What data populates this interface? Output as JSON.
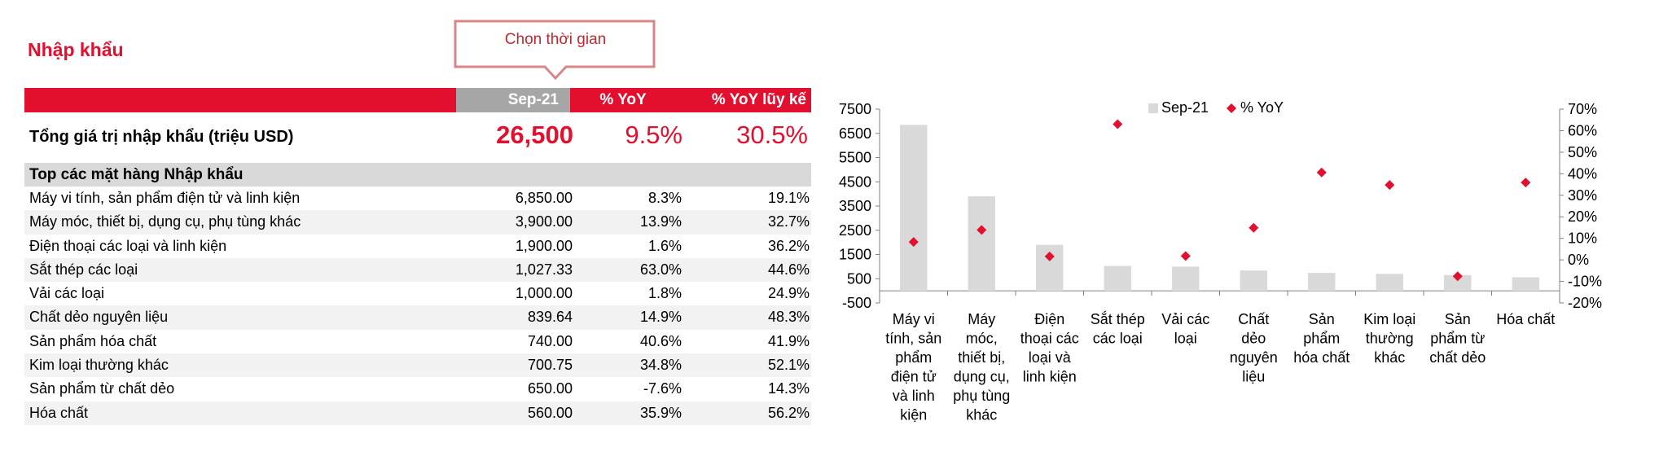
{
  "section": {
    "title": "Nhập khẩu"
  },
  "callout": {
    "label": "Chọn thời gian"
  },
  "table": {
    "headers": {
      "date": "Sep-21",
      "yoy": "% YoY",
      "ytd": "% YoY lũy kế"
    },
    "total": {
      "label": "Tổng giá trị nhập khẩu (triệu USD)",
      "value": "26,500",
      "yoy": "9.5%",
      "ytd": "30.5%"
    },
    "subheader": "Top các mặt hàng Nhập khẩu",
    "rows": [
      {
        "name": "Máy vi tính, sản phẩm điện tử và linh kiện",
        "value": "6,850.00",
        "yoy": "8.3%",
        "ytd": "19.1%"
      },
      {
        "name": "Máy móc, thiết bị, dụng cụ, phụ tùng khác",
        "value": "3,900.00",
        "yoy": "13.9%",
        "ytd": "32.7%"
      },
      {
        "name": "Điện thoại các loại và linh kiện",
        "value": "1,900.00",
        "yoy": "1.6%",
        "ytd": "36.2%"
      },
      {
        "name": "Sắt thép các loại",
        "value": "1,027.33",
        "yoy": "63.0%",
        "ytd": "44.6%"
      },
      {
        "name": "Vải các loại",
        "value": "1,000.00",
        "yoy": "1.8%",
        "ytd": "24.9%"
      },
      {
        "name": "Chất dẻo nguyên liệu",
        "value": "839.64",
        "yoy": "14.9%",
        "ytd": "48.3%"
      },
      {
        "name": "Sản phẩm hóa chất",
        "value": "740.00",
        "yoy": "40.6%",
        "ytd": "41.9%"
      },
      {
        "name": "Kim loại thường khác",
        "value": "700.75",
        "yoy": "34.8%",
        "ytd": "52.1%"
      },
      {
        "name": "Sản phẩm từ chất dẻo",
        "value": "650.00",
        "yoy": "-7.6%",
        "ytd": "14.3%"
      },
      {
        "name": "Hóa chất",
        "value": "560.00",
        "yoy": "35.9%",
        "ytd": "56.2%"
      }
    ]
  },
  "colors": {
    "accent": "#e30f2e",
    "bar": "#d9d9d9",
    "header_date": "#a6a6a6",
    "marker": "#e30f2e"
  },
  "chart_data": {
    "type": "bar",
    "categories": [
      [
        "Máy vi",
        "tính, sản",
        "phẩm",
        "điện tử",
        "và linh",
        "kiện"
      ],
      [
        "Máy",
        "móc,",
        "thiết bị,",
        "dụng cụ,",
        "phụ tùng",
        "khác"
      ],
      [
        "Điện",
        "thoại các",
        "loại và",
        "linh kiện"
      ],
      [
        "Sắt thép",
        "các loại"
      ],
      [
        "Vải các",
        "loại"
      ],
      [
        "Chất",
        "dẻo",
        "nguyên",
        "liệu"
      ],
      [
        "Sản",
        "phẩm",
        "hóa chất"
      ],
      [
        "Kim loại",
        "thường",
        "khác"
      ],
      [
        "Sản",
        "phẩm từ",
        "chất dẻo"
      ],
      [
        "Hóa chất"
      ]
    ],
    "series": [
      {
        "name": "Sep-21",
        "type": "bar",
        "axis": "left",
        "values": [
          6850,
          3900,
          1900,
          1027.33,
          1000,
          839.64,
          740,
          700.75,
          650,
          560
        ]
      },
      {
        "name": "% YoY",
        "type": "scatter",
        "axis": "right",
        "values": [
          8.3,
          13.9,
          1.6,
          63.0,
          1.8,
          14.9,
          40.6,
          34.8,
          -7.6,
          35.9
        ]
      }
    ],
    "left_axis": {
      "min": -500,
      "max": 7500,
      "ticks": [
        "7500",
        "6500",
        "5500",
        "4500",
        "3500",
        "2500",
        "1500",
        "500",
        "-500"
      ]
    },
    "right_axis": {
      "min": -20,
      "max": 70,
      "ticks": [
        "70%",
        "60%",
        "50%",
        "40%",
        "30%",
        "20%",
        "10%",
        "0%",
        "-10%",
        "-20%"
      ]
    },
    "legend_position": "top",
    "grid": false
  }
}
